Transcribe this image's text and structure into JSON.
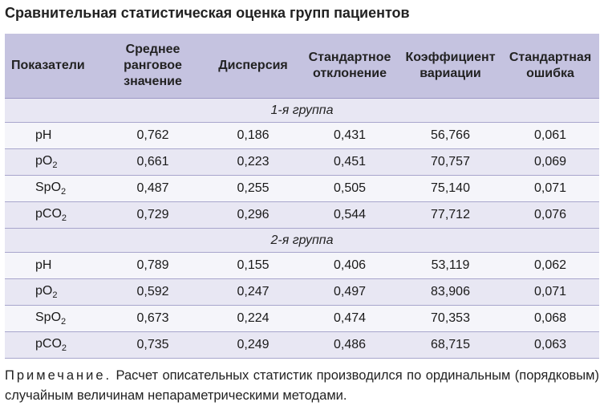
{
  "title": "Сравнительная статистическая оценка групп пациентов",
  "columns": [
    "Показатели",
    "Среднее ранговое значение",
    "Дисперсия",
    "Стандартное отклонение",
    "Коэффициент вариации",
    "Стандартная ошибка"
  ],
  "groups": [
    {
      "label": "1-я группа",
      "rows": [
        {
          "param": "pH",
          "sub": "",
          "values": [
            "0,762",
            "0,186",
            "0,431",
            "56,766",
            "0,061"
          ]
        },
        {
          "param": "pO",
          "sub": "2",
          "values": [
            "0,661",
            "0,223",
            "0,451",
            "70,757",
            "0,069"
          ]
        },
        {
          "param": "SpO",
          "sub": "2",
          "values": [
            "0,487",
            "0,255",
            "0,505",
            "75,140",
            "0,071"
          ]
        },
        {
          "param": "pCO",
          "sub": "2",
          "values": [
            "0,729",
            "0,296",
            "0,544",
            "77,712",
            "0,076"
          ]
        }
      ]
    },
    {
      "label": "2-я группа",
      "rows": [
        {
          "param": "pH",
          "sub": "",
          "values": [
            "0,789",
            "0,155",
            "0,406",
            "53,119",
            "0,062"
          ]
        },
        {
          "param": "pO",
          "sub": "2",
          "values": [
            "0,592",
            "0,247",
            "0,497",
            "83,906",
            "0,071"
          ]
        },
        {
          "param": "SpO",
          "sub": "2",
          "values": [
            "0,673",
            "0,224",
            "0,474",
            "70,353",
            "0,068"
          ]
        },
        {
          "param": "pCO",
          "sub": "2",
          "values": [
            "0,735",
            "0,249",
            "0,486",
            "68,715",
            "0,063"
          ]
        }
      ]
    }
  ],
  "note": {
    "label": "Примечание.",
    "text": "Расчет описательных статистик производился по ординальным (порядковым) случайным величинам непараметрическими методами."
  },
  "colors": {
    "header_bg": "#c5c3e0",
    "row_light": "#f5f5fa",
    "row_dark": "#e8e7f3",
    "border": "#a8a6cc"
  }
}
